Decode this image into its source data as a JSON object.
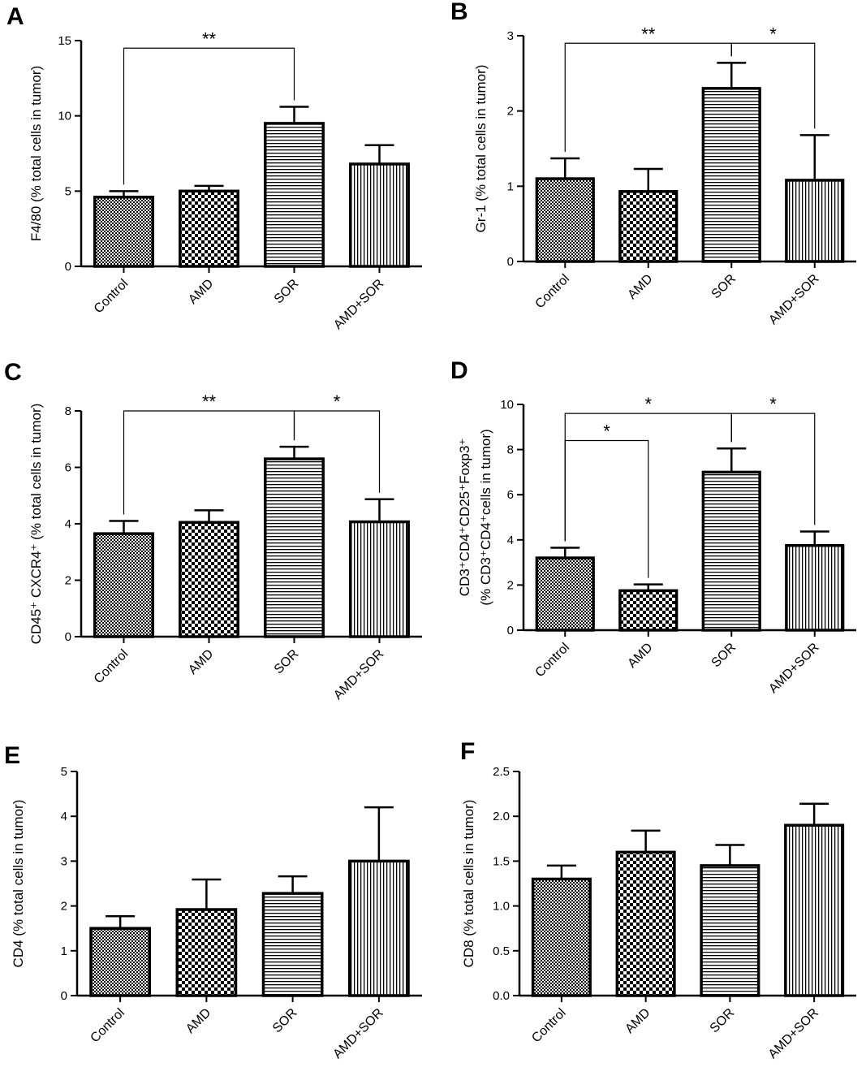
{
  "style": {
    "bar_color": "#000000",
    "background": "#ffffff"
  },
  "chart_data": [
    {
      "panel": "A",
      "type": "bar",
      "categories": [
        "Control",
        "AMD",
        "SOR",
        "AMD+SOR"
      ],
      "values": [
        4.6,
        5.0,
        9.5,
        6.8
      ],
      "errors": [
        0.4,
        0.35,
        1.1,
        1.25
      ],
      "ylabel": "F4/80 (% total cells in tumor)",
      "ylim": [
        0,
        15
      ],
      "yticks": [
        0,
        5,
        10,
        15
      ],
      "ytick_labels": [
        "0",
        "5",
        "10",
        "15"
      ],
      "fills": [
        "fine-check",
        "coarse-check",
        "horizontal",
        "vertical"
      ],
      "brackets": [
        {
          "from": 0,
          "to": 2,
          "y": 14.5,
          "label": "**"
        }
      ]
    },
    {
      "panel": "B",
      "type": "bar",
      "categories": [
        "Control",
        "AMD",
        "SOR",
        "AMD+SOR"
      ],
      "values": [
        1.1,
        0.93,
        2.3,
        1.08
      ],
      "errors": [
        0.27,
        0.3,
        0.34,
        0.6
      ],
      "ylabel": "Gr-1 (% total cells in tumor)",
      "ylim": [
        0,
        3
      ],
      "yticks": [
        0,
        1,
        2,
        3
      ],
      "ytick_labels": [
        "0",
        "1",
        "2",
        "3"
      ],
      "fills": [
        "fine-check",
        "coarse-check",
        "horizontal",
        "vertical"
      ],
      "brackets": [
        {
          "from": 0,
          "to": 2,
          "y": 2.9,
          "label": "**"
        },
        {
          "from": 2,
          "to": 3,
          "y": 2.9,
          "label": "*"
        }
      ]
    },
    {
      "panel": "C",
      "type": "bar",
      "categories": [
        "Control",
        "AMD",
        "SOR",
        "AMD+SOR"
      ],
      "values": [
        3.65,
        4.05,
        6.3,
        4.07
      ],
      "errors": [
        0.45,
        0.43,
        0.43,
        0.8
      ],
      "ylabel": "CD45⁺ CXCR4⁺ (% total cells in tumor)",
      "ylim": [
        0,
        8
      ],
      "yticks": [
        0,
        2,
        4,
        6,
        8
      ],
      "ytick_labels": [
        "0",
        "2",
        "4",
        "6",
        "8"
      ],
      "fills": [
        "fine-check",
        "coarse-check",
        "horizontal",
        "vertical"
      ],
      "brackets": [
        {
          "from": 0,
          "to": 2,
          "y": 8.0,
          "label": "**"
        },
        {
          "from": 2,
          "to": 3,
          "y": 8.0,
          "label": "*"
        }
      ]
    },
    {
      "panel": "D",
      "type": "bar",
      "categories": [
        "Control",
        "AMD",
        "SOR",
        "AMD+SOR"
      ],
      "values": [
        3.2,
        1.75,
        7.0,
        3.75
      ],
      "errors": [
        0.45,
        0.28,
        1.05,
        0.62
      ],
      "ylabel": "CD3⁺CD4⁺CD25⁺Foxp3⁺",
      "ylabel2": "(% CD3⁺CD4⁺cells in tumor)",
      "ylim": [
        0,
        10
      ],
      "yticks": [
        0,
        2,
        4,
        6,
        8,
        10
      ],
      "ytick_labels": [
        "0",
        "2",
        "4",
        "6",
        "8",
        "10"
      ],
      "fills": [
        "fine-check",
        "coarse-check",
        "horizontal",
        "vertical"
      ],
      "brackets": [
        {
          "from": 0,
          "to": 1,
          "y": 8.4,
          "label": "*"
        },
        {
          "from": 0,
          "to": 2,
          "y": 9.6,
          "label": "*"
        },
        {
          "from": 2,
          "to": 3,
          "y": 9.6,
          "label": "*"
        }
      ]
    },
    {
      "panel": "E",
      "type": "bar",
      "categories": [
        "Control",
        "AMD",
        "SOR",
        "AMD+SOR"
      ],
      "values": [
        1.5,
        1.92,
        2.28,
        3.0
      ],
      "errors": [
        0.27,
        0.67,
        0.38,
        1.2
      ],
      "ylabel": "CD4 (% total cells in tumor)",
      "ylim": [
        0,
        5
      ],
      "yticks": [
        0,
        1,
        2,
        3,
        4,
        5
      ],
      "ytick_labels": [
        "0",
        "1",
        "2",
        "3",
        "4",
        "5"
      ],
      "fills": [
        "fine-check",
        "coarse-check",
        "horizontal",
        "vertical"
      ],
      "brackets": []
    },
    {
      "panel": "F",
      "type": "bar",
      "categories": [
        "Control",
        "AMD",
        "SOR",
        "AMD+SOR"
      ],
      "values": [
        1.3,
        1.6,
        1.45,
        1.9
      ],
      "errors": [
        0.15,
        0.24,
        0.23,
        0.24
      ],
      "ylabel": "CD8 (% total cells in tumor)",
      "ylim": [
        0,
        2.5
      ],
      "yticks": [
        0,
        0.5,
        1.0,
        1.5,
        2.0,
        2.5
      ],
      "ytick_labels": [
        "0.0",
        "0.5",
        "1.0",
        "1.5",
        "2.0",
        "2.5"
      ],
      "fills": [
        "fine-check",
        "coarse-check",
        "horizontal",
        "vertical"
      ],
      "brackets": []
    }
  ]
}
